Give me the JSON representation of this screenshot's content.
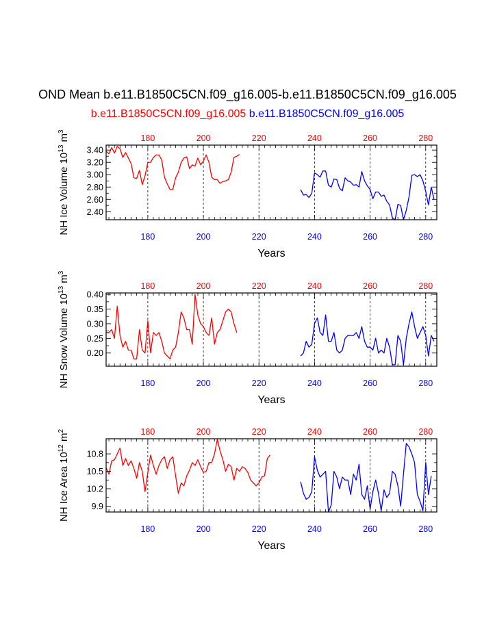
{
  "title": "OND Mean b.e11.B1850C5CN.f09_g16.005-b.e11.B1850C5CN.f09_g16.005",
  "subtitle_left": "b.e11.B1850C5CN.f09_g16.005",
  "subtitle_right": "b.e11.B1850C5CN.f09_g16.005",
  "colors": {
    "series1": "#ff0000",
    "series2": "#0000ff"
  },
  "chart_data": [
    {
      "type": "line",
      "name": "ice-volume",
      "ylabel_main": "NH Ice Volume 10",
      "ylabel_sup1": "13",
      "ylabel_unit": " m",
      "ylabel_sup2": "3",
      "xlabel": "Years",
      "xlim": [
        165,
        284
      ],
      "ylim": [
        2.27,
        3.48
      ],
      "yticks": [
        "2.40",
        "2.60",
        "2.80",
        "3.00",
        "3.20",
        "3.40"
      ],
      "xticks_top": [
        "180",
        "200",
        "220",
        "240",
        "260",
        "280"
      ],
      "xticks_bottom": [
        "180",
        "200",
        "220",
        "240",
        "260",
        "280"
      ],
      "series": [
        {
          "name": "red",
          "x_start": 165,
          "values": [
            3.38,
            3.34,
            3.44,
            3.35,
            3.46,
            3.42,
            3.28,
            3.36,
            3.27,
            3.18,
            2.95,
            2.94,
            3.07,
            2.84,
            2.98,
            3.2,
            3.2,
            3.28,
            3.32,
            3.32,
            3.24,
            2.96,
            2.85,
            2.76,
            2.76,
            2.95,
            3.04,
            3.2,
            3.27,
            3.29,
            3.1,
            3.16,
            3.14,
            3.27,
            3.16,
            3.22,
            3.32,
            3.2,
            2.96,
            2.92,
            2.92,
            2.86,
            2.89,
            2.9,
            2.92,
            3.04,
            3.28,
            3.3,
            3.33
          ]
        },
        {
          "name": "blue",
          "x_start": 235,
          "values": [
            2.76,
            2.67,
            2.68,
            2.63,
            2.7,
            3.03,
            3.0,
            2.96,
            3.06,
            3.06,
            2.83,
            2.8,
            2.93,
            2.92,
            2.78,
            2.74,
            2.95,
            2.9,
            2.88,
            2.83,
            2.84,
            2.8,
            3.05,
            2.9,
            2.82,
            2.76,
            2.61,
            2.72,
            2.72,
            2.65,
            2.67,
            2.57,
            2.51,
            2.3,
            2.27,
            2.52,
            2.5,
            2.27,
            2.42,
            2.64,
            2.99,
            3.0,
            2.97,
            3.0,
            2.9,
            2.73,
            2.51,
            2.8,
            2.6
          ]
        }
      ]
    },
    {
      "type": "line",
      "name": "snow-volume",
      "ylabel_main": "NH Snow Volume 10",
      "ylabel_sup1": "13",
      "ylabel_unit": " m",
      "ylabel_sup2": "3",
      "xlabel": "Years",
      "xlim": [
        165,
        284
      ],
      "ylim": [
        0.155,
        0.405
      ],
      "yticks": [
        "0.20",
        "0.25",
        "0.30",
        "0.35",
        "0.40"
      ],
      "xticks_top": [
        "180",
        "200",
        "220",
        "240",
        "260",
        "280"
      ],
      "xticks_bottom": [
        "180",
        "200",
        "220",
        "240",
        "260",
        "280"
      ],
      "series": [
        {
          "name": "red",
          "x_start": 165,
          "values": [
            0.27,
            0.27,
            0.28,
            0.25,
            0.36,
            0.26,
            0.22,
            0.24,
            0.21,
            0.21,
            0.18,
            0.18,
            0.28,
            0.21,
            0.2,
            0.31,
            0.2,
            0.27,
            0.26,
            0.27,
            0.24,
            0.2,
            0.19,
            0.18,
            0.21,
            0.22,
            0.27,
            0.34,
            0.32,
            0.28,
            0.28,
            0.23,
            0.4,
            0.33,
            0.3,
            0.29,
            0.27,
            0.26,
            0.32,
            0.23,
            0.27,
            0.28,
            0.31,
            0.34,
            0.35,
            0.34,
            0.3,
            0.27
          ]
        },
        {
          "name": "blue",
          "x_start": 235,
          "values": [
            0.19,
            0.2,
            0.24,
            0.22,
            0.23,
            0.3,
            0.32,
            0.27,
            0.26,
            0.33,
            0.24,
            0.24,
            0.27,
            0.21,
            0.2,
            0.21,
            0.25,
            0.26,
            0.26,
            0.26,
            0.27,
            0.25,
            0.29,
            0.24,
            0.22,
            0.22,
            0.21,
            0.25,
            0.2,
            0.21,
            0.2,
            0.25,
            0.22,
            0.16,
            0.16,
            0.26,
            0.24,
            0.16,
            0.25,
            0.3,
            0.34,
            0.29,
            0.25,
            0.27,
            0.29,
            0.26,
            0.19,
            0.26,
            0.24
          ]
        }
      ]
    },
    {
      "type": "line",
      "name": "ice-area",
      "ylabel_main": "NH Ice Area 10",
      "ylabel_sup1": "12",
      "ylabel_unit": " m",
      "ylabel_sup2": "2",
      "xlabel": "Years",
      "xlim": [
        165,
        284
      ],
      "ylim": [
        9.8,
        11.06
      ],
      "yticks": [
        "9.9",
        "10.2",
        "10.5",
        "10.8"
      ],
      "xticks_top": [
        "180",
        "200",
        "220",
        "240",
        "260",
        "280"
      ],
      "xticks_bottom": [
        "180",
        "200",
        "220",
        "240",
        "260",
        "280"
      ],
      "series": [
        {
          "name": "red",
          "x_start": 165,
          "values": [
            10.56,
            10.45,
            10.68,
            10.7,
            10.8,
            10.9,
            10.6,
            10.72,
            10.6,
            10.68,
            10.55,
            10.38,
            10.65,
            10.5,
            10.15,
            10.48,
            10.78,
            10.6,
            10.45,
            10.6,
            10.7,
            10.75,
            10.55,
            10.7,
            10.75,
            10.42,
            10.12,
            10.3,
            10.25,
            10.42,
            10.52,
            10.65,
            10.6,
            10.7,
            10.58,
            10.48,
            10.5,
            10.65,
            10.65,
            10.8,
            11.05,
            10.85,
            10.7,
            10.5,
            10.62,
            10.58,
            10.35,
            10.55,
            10.5,
            10.58,
            10.55,
            10.48,
            10.35,
            10.3,
            10.25,
            10.3,
            10.4,
            10.42,
            10.72,
            10.78
          ]
        },
        {
          "name": "blue",
          "x_start": 235,
          "values": [
            10.32,
            10.12,
            10.02,
            10.05,
            10.15,
            10.75,
            10.52,
            10.4,
            10.45,
            10.5,
            9.8,
            9.92,
            10.5,
            10.4,
            10.2,
            10.4,
            10.35,
            10.35,
            10.1,
            10.45,
            10.35,
            10.62,
            10.1,
            10.02,
            10.25,
            9.85,
            10.15,
            10.35,
            10.12,
            9.82,
            10.18,
            10.05,
            10.12,
            10.5,
            10.45,
            10.25,
            9.9,
            10.45,
            10.98,
            10.92,
            10.8,
            10.65,
            10.1,
            9.98,
            9.82,
            10.65,
            10.1,
            10.42
          ]
        }
      ]
    }
  ]
}
